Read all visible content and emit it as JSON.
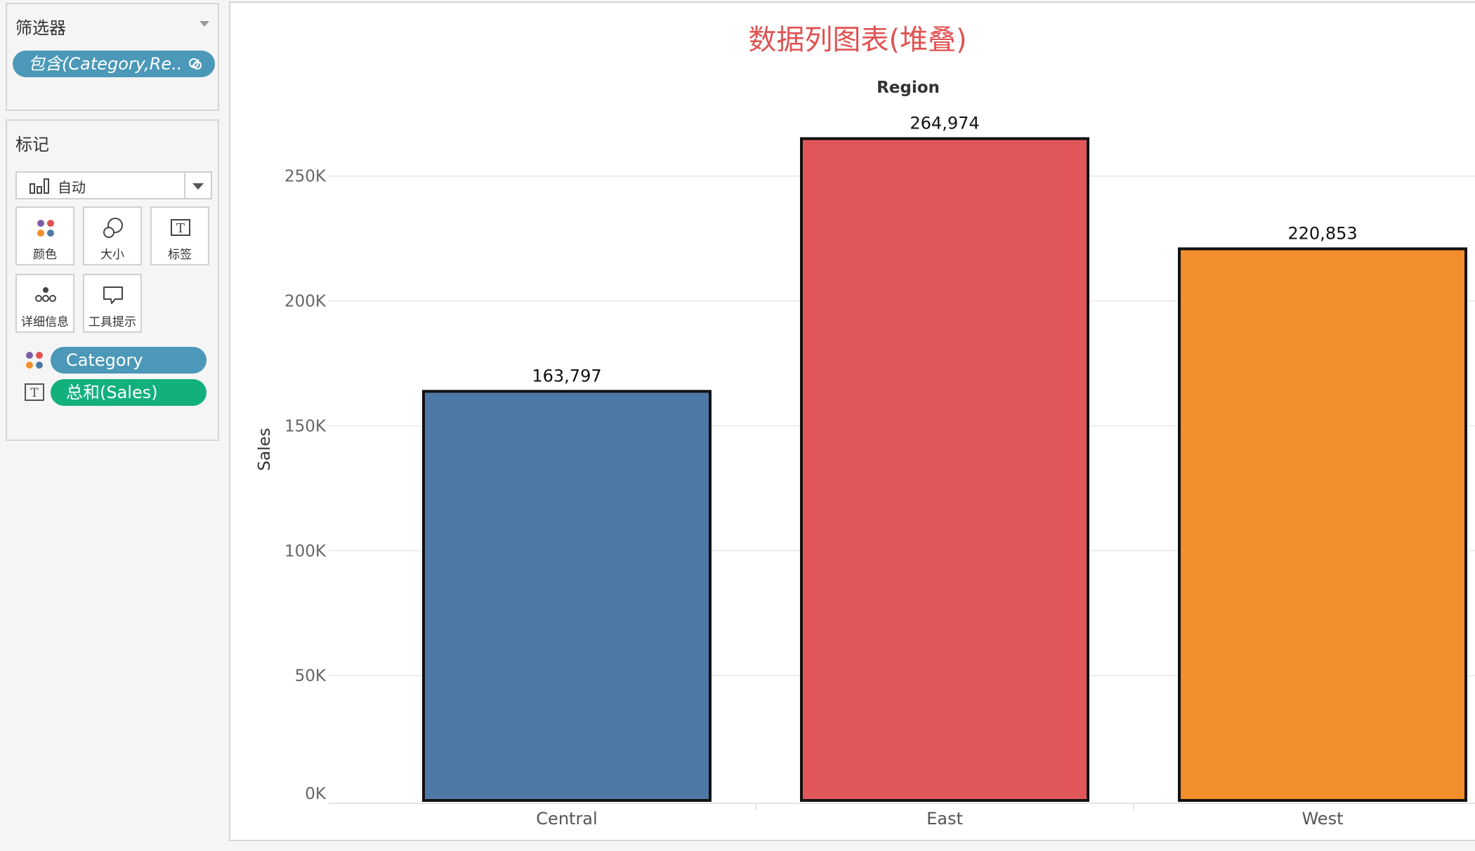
{
  "filters": {
    "title": "筛选器",
    "pill_label": "包含(Category,Re..",
    "pill_color": "#4b98b8"
  },
  "marks": {
    "title": "标记",
    "mark_type": "自动",
    "buttons": [
      {
        "label": "颜色",
        "icon": "color-dots-icon"
      },
      {
        "label": "大小",
        "icon": "size-circles-icon"
      },
      {
        "label": "标签",
        "icon": "text-label-icon"
      },
      {
        "label": "详细信息",
        "icon": "detail-dots-icon"
      },
      {
        "label": "工具提示",
        "icon": "tooltip-bubble-icon"
      }
    ],
    "shelf": [
      {
        "label": "Category",
        "icon": "color-dots-icon",
        "color": "#4b98b8"
      },
      {
        "label": "总和(Sales)",
        "icon": "text-label-icon",
        "color": "#12b07c"
      }
    ]
  },
  "chart_data": {
    "type": "bar",
    "title": "数据列图表(堆叠)",
    "column_header": "Region",
    "ylabel": "Sales",
    "categories": [
      "Central",
      "East",
      "West"
    ],
    "values": [
      163797,
      264974,
      220853
    ],
    "value_labels": [
      "163,797",
      "264,974",
      "220,853"
    ],
    "colors": [
      "#4e79a7",
      "#e15759",
      "#f28e2b"
    ],
    "ylim": [
      0,
      280000
    ],
    "yticks": [
      0,
      50000,
      100000,
      150000,
      200000,
      250000
    ],
    "ytick_labels": [
      "0K",
      "50K",
      "100K",
      "150K",
      "200K",
      "250K"
    ],
    "grid": true
  }
}
